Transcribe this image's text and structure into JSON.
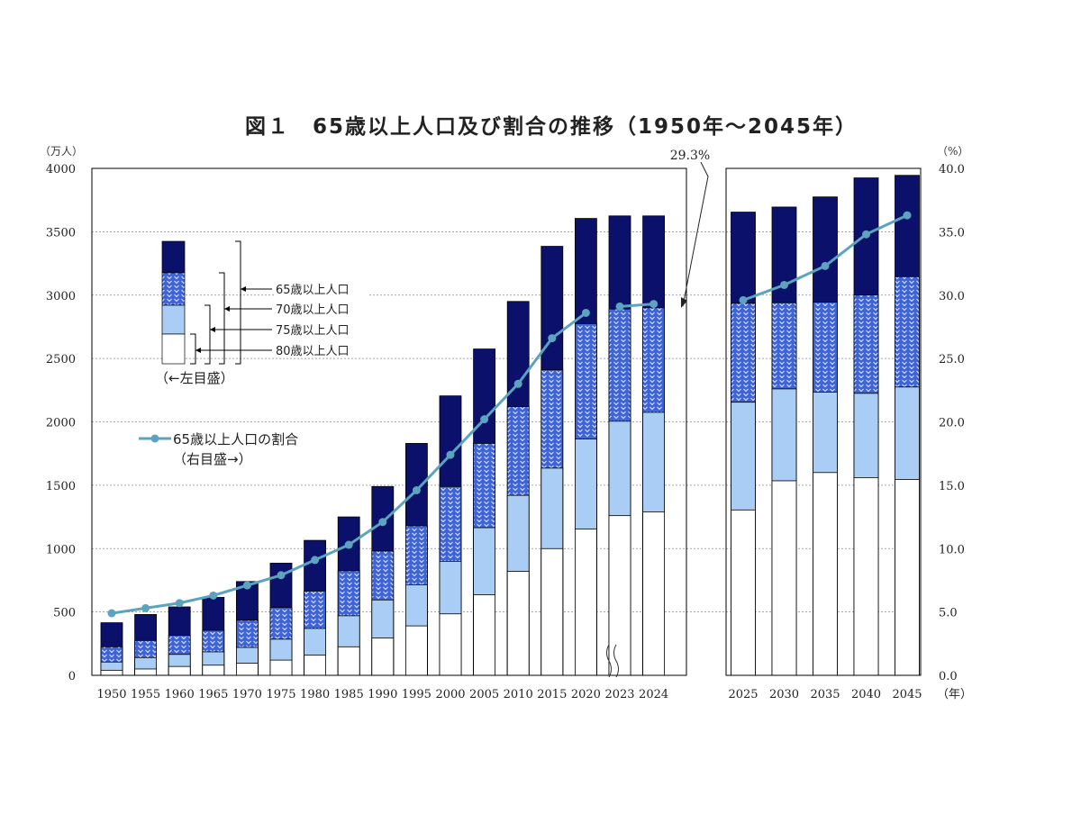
{
  "chart_data": {
    "type": "bar+line",
    "title": "図１　65歳以上人口及び割合の推移（1950年～2045年）",
    "left_axis": {
      "unit": "（万人）",
      "ylim": [
        0,
        4000
      ],
      "ticks": [
        "0",
        "500",
        "1000",
        "1500",
        "2000",
        "2500",
        "3000",
        "3500",
        "4000"
      ]
    },
    "right_axis": {
      "unit": "（%）",
      "ylim": [
        0,
        40
      ],
      "ticks": [
        "0.0",
        "5.0",
        "10.0",
        "15.0",
        "20.0",
        "25.0",
        "30.0",
        "35.0",
        "40.0"
      ]
    },
    "x_unit": "（年）",
    "grid": "dashed horizontal",
    "panels": [
      {
        "name": "actual",
        "categories": [
          "1950",
          "1955",
          "1960",
          "1965",
          "1970",
          "1975",
          "1980",
          "1985",
          "1990",
          "1995",
          "2000",
          "2005",
          "2010",
          "2015",
          "2020",
          "2023",
          "2024"
        ],
        "age80": [
          40,
          50,
          70,
          80,
          95,
          120,
          160,
          225,
          295,
          390,
          485,
          635,
          820,
          1000,
          1155,
          1260,
          1290
        ],
        "age75": [
          105,
          140,
          165,
          185,
          220,
          285,
          370,
          470,
          595,
          715,
          900,
          1165,
          1420,
          1635,
          1865,
          2005,
          2075
        ],
        "age70": [
          225,
          275,
          315,
          355,
          435,
          535,
          665,
          825,
          980,
          1180,
          1490,
          1830,
          2120,
          2410,
          2775,
          2890,
          2900
        ],
        "age65": [
          415,
          480,
          540,
          615,
          740,
          885,
          1065,
          1250,
          1490,
          1830,
          2205,
          2575,
          2950,
          3385,
          3605,
          3625,
          3625
        ],
        "ratio": [
          4.9,
          5.3,
          5.7,
          6.3,
          7.1,
          7.9,
          9.1,
          10.3,
          12.1,
          14.6,
          17.4,
          20.2,
          23.0,
          26.6,
          28.6,
          29.1,
          29.3
        ]
      },
      {
        "name": "projection",
        "categories": [
          "2025",
          "2030",
          "2035",
          "2040",
          "2045"
        ],
        "age80": [
          1305,
          1535,
          1600,
          1560,
          1545
        ],
        "age75": [
          2155,
          2260,
          2235,
          2225,
          2275
        ],
        "age70": [
          2935,
          2940,
          2945,
          3000,
          3145
        ],
        "age65": [
          3655,
          3695,
          3775,
          3925,
          3945
        ],
        "ratio": [
          29.6,
          30.8,
          32.3,
          34.8,
          36.3
        ]
      }
    ],
    "series_legend": [
      {
        "name": "65歳以上人口",
        "color": "#0b116b"
      },
      {
        "name": "70歳以上人口",
        "color": "#3f63d8"
      },
      {
        "name": "75歳以上人口",
        "color": "#a9cdf4"
      },
      {
        "name": "80歳以上人口",
        "color": "#ffffff"
      }
    ],
    "legend_note_left": "（←左目盛）",
    "line_legend": {
      "name": "65歳以上人口の割合",
      "note": "（右目盛→）",
      "color": "#5ba3be"
    },
    "annotation": "29.3%"
  }
}
